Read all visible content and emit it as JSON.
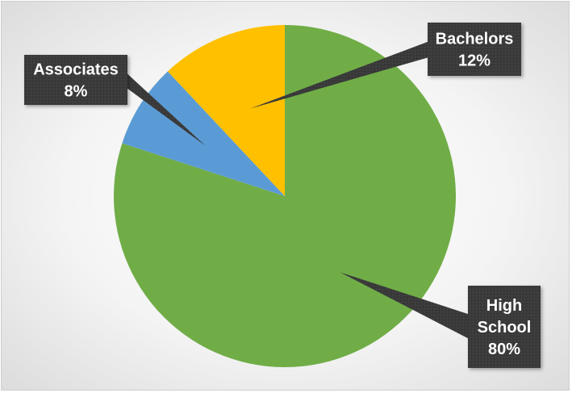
{
  "chart_data": {
    "type": "pie",
    "title": "",
    "slices": [
      {
        "name": "High School",
        "label_lines": [
          "High",
          "School"
        ],
        "value": 80,
        "value_label": "80%",
        "color": "#70AD47"
      },
      {
        "name": "Associates",
        "label_lines": [
          "Associates"
        ],
        "value": 8,
        "value_label": "8%",
        "color": "#5B9BD5"
      },
      {
        "name": "Bachelors",
        "label_lines": [
          "Bachelors"
        ],
        "value": 12,
        "value_label": "12%",
        "color": "#FFC000"
      }
    ],
    "start_angle_deg": 0,
    "direction": "clockwise",
    "legend": "none",
    "data_labels": "callouts"
  }
}
